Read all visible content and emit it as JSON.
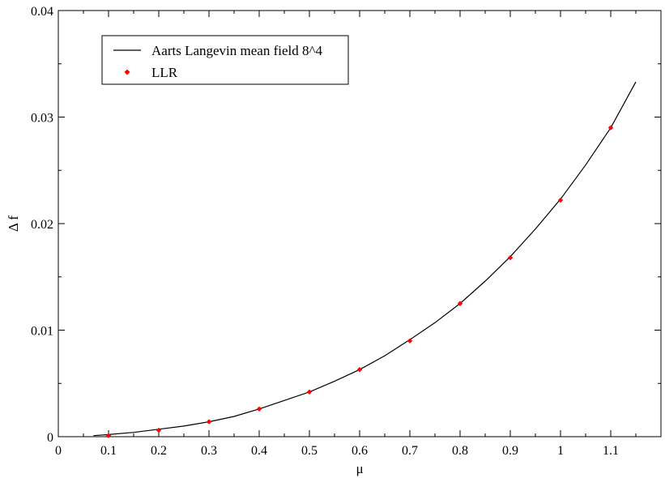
{
  "chart_data": {
    "type": "line",
    "xlabel": "μ",
    "ylabel": "Δ f",
    "xlim": [
      0,
      1.2
    ],
    "ylim": [
      0,
      0.04
    ],
    "x_ticks": [
      0,
      0.1,
      0.2,
      0.3,
      0.4,
      0.5,
      0.6,
      0.7,
      0.8,
      0.9,
      1,
      1.1
    ],
    "x_tick_labels": [
      "0",
      "0.1",
      "0.2",
      "0.3",
      "0.4",
      "0.5",
      "0.6",
      "0.7",
      "0.8",
      "0.9",
      "1",
      "1.1"
    ],
    "y_ticks": [
      0,
      0.01,
      0.02,
      0.03,
      0.04
    ],
    "y_tick_labels": [
      "0",
      "0.01",
      "0.02",
      "0.03",
      "0.04"
    ],
    "grid": false,
    "legend_position": "top-left",
    "series": [
      {
        "name": "Aarts Langevin mean field 8^4",
        "kind": "line",
        "color": "#000000",
        "x": [
          0.07,
          0.1,
          0.15,
          0.2,
          0.25,
          0.3,
          0.35,
          0.4,
          0.45,
          0.5,
          0.55,
          0.6,
          0.65,
          0.7,
          0.75,
          0.8,
          0.85,
          0.9,
          0.95,
          1.0,
          1.05,
          1.1,
          1.15
        ],
        "y": [
          0.0001,
          0.0002,
          0.0004,
          0.0007,
          0.001,
          0.0014,
          0.0019,
          0.0026,
          0.0034,
          0.0042,
          0.0052,
          0.0063,
          0.0076,
          0.0091,
          0.0107,
          0.0125,
          0.0146,
          0.0169,
          0.0195,
          0.0223,
          0.0255,
          0.029,
          0.0333
        ]
      },
      {
        "name": "LLR",
        "kind": "scatter",
        "color": "#ff0000",
        "x": [
          0.1,
          0.2,
          0.3,
          0.4,
          0.5,
          0.6,
          0.7,
          0.8,
          0.9,
          1.0,
          1.1
        ],
        "y": [
          0.0001,
          0.0006,
          0.0014,
          0.0026,
          0.0042,
          0.0063,
          0.009,
          0.0125,
          0.0168,
          0.0222,
          0.029
        ]
      }
    ]
  }
}
